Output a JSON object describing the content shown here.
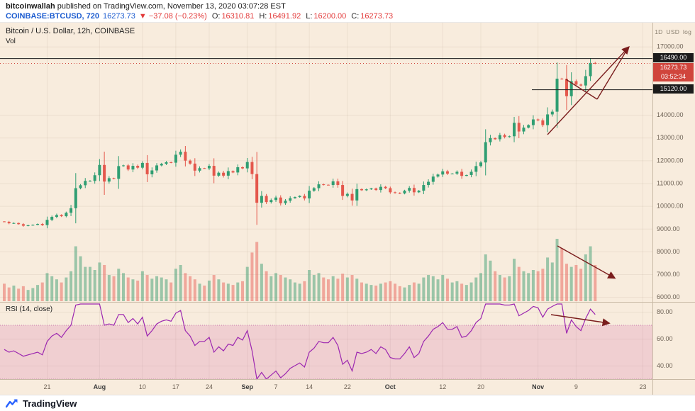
{
  "header": {
    "publisher": "bitcoinwallah",
    "published_suffix": " published on TradingView.com, November 13, 2020 03:07:28 EST",
    "symbol": "COINBASE:BTCUSD, 720",
    "last_price": "16273.73",
    "change": "▼ −37.08 (−0.23%)",
    "ohlc": [
      {
        "label": "O:",
        "value": "16310.81"
      },
      {
        "label": "H:",
        "value": "16491.92"
      },
      {
        "label": "L:",
        "value": "16200.00"
      },
      {
        "label": "C:",
        "value": "16273.73"
      }
    ]
  },
  "chart": {
    "title": "Bitcoin / U.S. Dollar, 12h, COINBASE",
    "volume_label": "Vol",
    "rsi_label": "RSI (14, close)",
    "badges": [
      "1D",
      "USD",
      "log"
    ],
    "price_tags": {
      "line_upper": "16490.00",
      "last": "16273.73",
      "countdown": "03:52:34",
      "line_lower": "15120.00"
    },
    "last_price_value": 16273.73,
    "h_lines": [
      {
        "price": 16490,
        "x1": 0,
        "x2": 920
      },
      {
        "price": 15120,
        "x1": 750,
        "x2": 920
      }
    ],
    "drawings": {
      "color": "#7a1d1d",
      "price_lines": [
        {
          "points": [
            [
              772,
              158
            ],
            [
              886,
              35
            ]
          ],
          "arrow": true
        },
        {
          "points": [
            [
              798,
              80
            ],
            [
              842,
              108
            ]
          ],
          "arrow": false
        },
        {
          "points": [
            [
              842,
              108
            ],
            [
              886,
              35
            ]
          ],
          "arrow": false
        }
      ],
      "volume_arrow": {
        "points": [
          [
            786,
            315
          ],
          [
            866,
            360
          ]
        ],
        "arrow": true
      },
      "rsi_arrow": {
        "points": [
          [
            777,
            412
          ],
          [
            858,
            424
          ]
        ],
        "arrow": true
      }
    }
  },
  "axes": {
    "price_ticks": [
      {
        "label": "17000.00",
        "value": 17000
      },
      {
        "label": "14000.00",
        "value": 14000
      },
      {
        "label": "13000.00",
        "value": 13000
      },
      {
        "label": "12000.00",
        "value": 12000
      },
      {
        "label": "11000.00",
        "value": 11000
      },
      {
        "label": "10000.00",
        "value": 10000
      },
      {
        "label": "9000.00",
        "value": 9000
      },
      {
        "label": "8000.00",
        "value": 8000
      },
      {
        "label": "7000.00",
        "value": 7000
      },
      {
        "label": "6000.00",
        "value": 6000
      }
    ],
    "time_ticks": [
      {
        "label": "21",
        "day": 9
      },
      {
        "label": "Aug",
        "day": 20,
        "major": true
      },
      {
        "label": "10",
        "day": 29
      },
      {
        "label": "17",
        "day": 36
      },
      {
        "label": "24",
        "day": 43
      },
      {
        "label": "Sep",
        "day": 51,
        "major": true
      },
      {
        "label": "7",
        "day": 57
      },
      {
        "label": "14",
        "day": 64
      },
      {
        "label": "22",
        "day": 72
      },
      {
        "label": "Oct",
        "day": 81,
        "major": true
      },
      {
        "label": "12",
        "day": 92
      },
      {
        "label": "20",
        "day": 100
      },
      {
        "label": "Nov",
        "day": 112,
        "major": true
      },
      {
        "label": "9",
        "day": 120
      },
      {
        "label": "23",
        "day": 134
      }
    ],
    "rsi_ticks": [
      {
        "label": "80.00",
        "v": 80
      },
      {
        "label": "60.00",
        "v": 60
      },
      {
        "label": "40.00",
        "v": 40
      }
    ]
  },
  "chart_data": [
    {
      "type": "candlestick",
      "name": "BTC/USD close series, approx Jul 12 – Nov 13 2020 (one point per day)",
      "title": "Bitcoin / U.S. Dollar, 12h, COINBASE",
      "ylabel": "USD",
      "price_range": [
        5600,
        17800
      ],
      "first_open": 9320,
      "closes": [
        9300,
        9240,
        9250,
        9200,
        9130,
        9150,
        9170,
        9210,
        9160,
        9390,
        9520,
        9600,
        9550,
        9700,
        9900,
        10780,
        10910,
        11100,
        11100,
        11350,
        11800,
        11070,
        11220,
        11190,
        11750,
        11780,
        11600,
        11760,
        11680,
        11890,
        11390,
        11560,
        11780,
        11850,
        11920,
        11900,
        12250,
        12380,
        11990,
        11860,
        11550,
        11660,
        11650,
        11760,
        11330,
        11460,
        11330,
        11530,
        11470,
        11700,
        11650,
        11930,
        11400,
        10140,
        10440,
        10170,
        10260,
        10370,
        10120,
        10230,
        10340,
        10390,
        10440,
        10330,
        10670,
        10780,
        10950,
        10930,
        10920,
        11080,
        10920,
        10440,
        10530,
        10240,
        10740,
        10690,
        10730,
        10770,
        10700,
        10840,
        10780,
        10600,
        10570,
        10550,
        10670,
        10790,
        10600,
        10670,
        10920,
        11060,
        11290,
        11380,
        11520,
        11420,
        11420,
        11500,
        11320,
        11360,
        11500,
        11750,
        11910,
        12800,
        12980,
        12930,
        13110,
        13030,
        13060,
        13650,
        13270,
        13440,
        13550,
        13800,
        13760,
        13550,
        14020,
        14140,
        15590,
        15580,
        14820,
        15480,
        15330,
        15290,
        15700,
        16280,
        16273
      ]
    },
    {
      "type": "bar",
      "name": "Volume (relative height, %)",
      "values": [
        28,
        22,
        25,
        20,
        24,
        18,
        21,
        26,
        30,
        45,
        40,
        35,
        30,
        38,
        48,
        88,
        72,
        55,
        55,
        50,
        62,
        58,
        42,
        40,
        52,
        45,
        38,
        35,
        33,
        48,
        42,
        36,
        40,
        38,
        35,
        30,
        52,
        58,
        45,
        40,
        35,
        28,
        25,
        33,
        42,
        35,
        30,
        28,
        26,
        30,
        32,
        55,
        78,
        95,
        60,
        48,
        40,
        45,
        42,
        38,
        35,
        30,
        28,
        32,
        50,
        42,
        45,
        38,
        35,
        40,
        36,
        44,
        38,
        42,
        36,
        30,
        28,
        26,
        25,
        28,
        30,
        32,
        28,
        24,
        22,
        26,
        30,
        28,
        38,
        42,
        40,
        35,
        42,
        36,
        30,
        32,
        28,
        26,
        30,
        38,
        45,
        75,
        65,
        48,
        42,
        38,
        40,
        68,
        55,
        48,
        45,
        50,
        48,
        52,
        70,
        62,
        100,
        85,
        60,
        55,
        58,
        52,
        75,
        88,
        58
      ]
    },
    {
      "type": "line",
      "name": "RSI (14, close)",
      "band": [
        30,
        70
      ],
      "ylim": [
        25,
        90
      ],
      "values": [
        52,
        50,
        51,
        49,
        47,
        48,
        49,
        50,
        48,
        58,
        62,
        64,
        61,
        66,
        70,
        85,
        86,
        88,
        87,
        88,
        90,
        70,
        71,
        70,
        78,
        78,
        72,
        75,
        71,
        76,
        62,
        66,
        71,
        73,
        74,
        73,
        79,
        81,
        66,
        62,
        55,
        58,
        58,
        61,
        50,
        54,
        51,
        56,
        55,
        61,
        59,
        66,
        51,
        28,
        35,
        30,
        33,
        36,
        31,
        34,
        38,
        40,
        42,
        39,
        50,
        53,
        58,
        57,
        57,
        61,
        55,
        41,
        44,
        36,
        50,
        49,
        50,
        52,
        49,
        54,
        52,
        46,
        45,
        45,
        49,
        54,
        46,
        49,
        58,
        62,
        67,
        69,
        72,
        67,
        67,
        69,
        61,
        62,
        66,
        72,
        75,
        88,
        89,
        87,
        88,
        85,
        85,
        89,
        77,
        79,
        81,
        84,
        83,
        76,
        82,
        84,
        92,
        88,
        64,
        74,
        69,
        66,
        75,
        82,
        78
      ]
    }
  ],
  "colors": {
    "bg": "#f8ecdd",
    "grid": "rgba(104,78,47,0.08)",
    "divider": "#c8b9a5",
    "up": "#2f9e72",
    "down": "#e4574c",
    "volUp": "rgba(78,165,123,0.55)",
    "volDown": "rgba(232,98,89,0.5)",
    "rsi": "#9c27b0",
    "rsiBand": "rgba(202,66,156,0.17)",
    "rsiBandEdge": "#c87ab0",
    "tagRed": "#d0453c",
    "tagDark": "#1b1b1b",
    "drawing": "#7a1d1d",
    "symbolBlue": "#1c5cd0",
    "changeRed": "#e33b3b"
  },
  "footer": {
    "brand": "TradingView"
  }
}
